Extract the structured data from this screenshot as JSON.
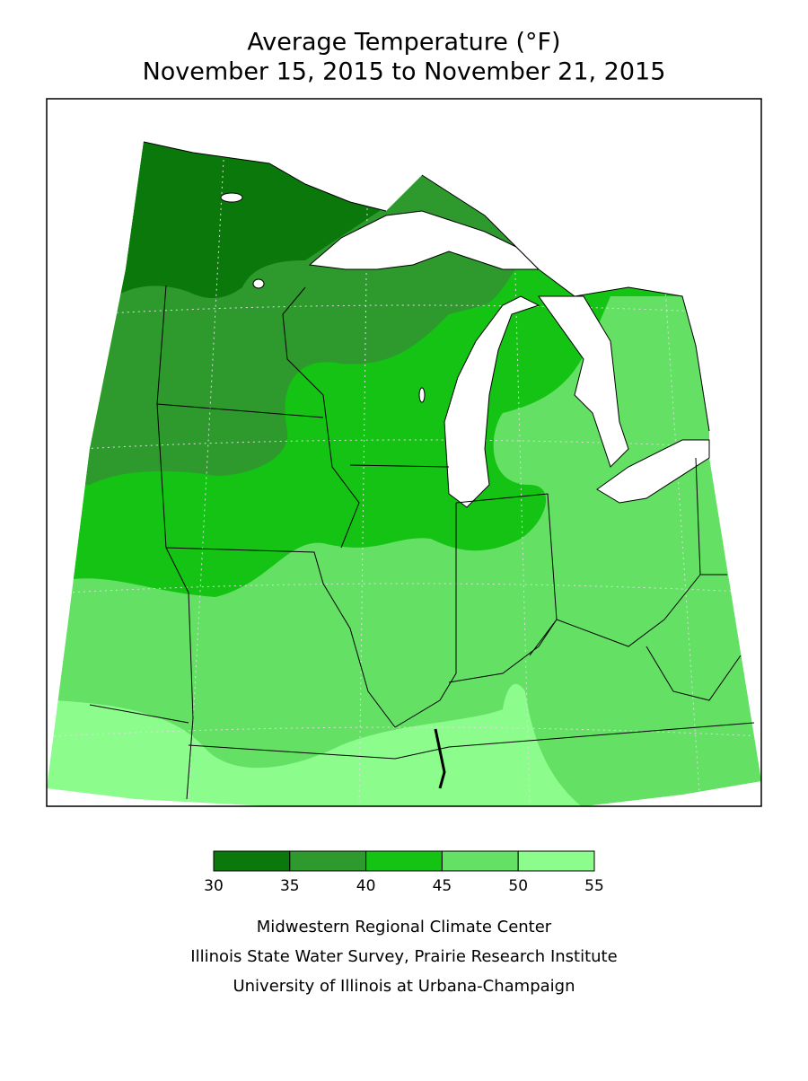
{
  "header": {
    "title": "Average Temperature (°F)",
    "subtitle": "November 15, 2015 to November 21, 2015"
  },
  "legend": {
    "ticks": [
      30,
      35,
      40,
      45,
      50,
      55
    ],
    "colors": [
      "#0a780a",
      "#2e9a2e",
      "#14c314",
      "#64e064",
      "#8cfc8c"
    ]
  },
  "footer": [
    "Midwestern Regional Climate Center",
    "Illinois State Water Survey, Prairie Research Institute",
    "University of Illinois at Urbana-Champaign"
  ]
}
